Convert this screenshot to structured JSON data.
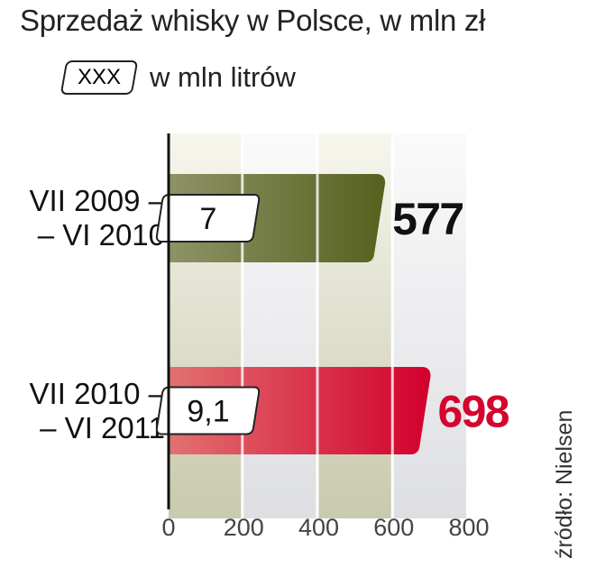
{
  "chart_data": {
    "type": "bar",
    "orientation": "horizontal",
    "title": "Sprzedaż whisky w Polsce, w mln zł",
    "legend": {
      "box_label": "XXX",
      "text": "w mln litrów"
    },
    "categories": [
      "VII 2009 – – VI 2010",
      "VII 2010 – – VI 2011"
    ],
    "category_lines": [
      [
        "VII 2009 –",
        "– VI 2010"
      ],
      [
        "VII 2010 –",
        "– VI 2011"
      ]
    ],
    "values": [
      577,
      698
    ],
    "value_labels": [
      "577",
      "698"
    ],
    "volume_labels": [
      "7",
      "9,1"
    ],
    "bar_colors": [
      "#5b6529",
      "#d4052f"
    ],
    "value_label_colors": [
      "#111111",
      "#d4052f"
    ],
    "xlim": [
      0,
      800
    ],
    "xticks": [
      "0",
      "200",
      "400",
      "600",
      "800"
    ],
    "source": "źródło: Nielsen"
  }
}
